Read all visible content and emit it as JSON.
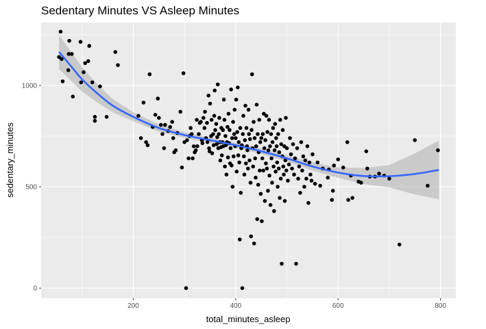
{
  "chart_data": {
    "type": "scatter",
    "title": "Sedentary Minutes VS Asleep Minutes",
    "xlabel": "total_minutes_asleep",
    "ylabel": "sedentary_minutes",
    "xlim": [
      20,
      830
    ],
    "ylim": [
      -50,
      1310
    ],
    "x_ticks": [
      200,
      400,
      600,
      800
    ],
    "y_ticks": [
      0,
      500,
      1000
    ],
    "grid": true,
    "legend": "none",
    "colors": {
      "panel": "#ebebeb",
      "grid": "#ffffff",
      "points": "#000000",
      "smooth_line": "#3366ff",
      "ribbon": "#999999"
    },
    "points": [
      [
        58,
        1265
      ],
      [
        55,
        1140
      ],
      [
        60,
        1130
      ],
      [
        62,
        1020
      ],
      [
        75,
        1220
      ],
      [
        73,
        1075
      ],
      [
        74,
        1155
      ],
      [
        80,
        1155
      ],
      [
        82,
        945
      ],
      [
        97,
        1215
      ],
      [
        103,
        1065
      ],
      [
        106,
        1110
      ],
      [
        112,
        1120
      ],
      [
        114,
        1195
      ],
      [
        98,
        1015
      ],
      [
        120,
        1015
      ],
      [
        125,
        825
      ],
      [
        125,
        845
      ],
      [
        135,
        995
      ],
      [
        148,
        845
      ],
      [
        165,
        1165
      ],
      [
        170,
        1100
      ],
      [
        210,
        850
      ],
      [
        215,
        740
      ],
      [
        220,
        915
      ],
      [
        225,
        720
      ],
      [
        228,
        705
      ],
      [
        232,
        1055
      ],
      [
        238,
        795
      ],
      [
        243,
        855
      ],
      [
        248,
        935
      ],
      [
        250,
        840
      ],
      [
        254,
        805
      ],
      [
        257,
        760
      ],
      [
        260,
        690
      ],
      [
        262,
        805
      ],
      [
        268,
        775
      ],
      [
        272,
        795
      ],
      [
        276,
        820
      ],
      [
        278,
        740
      ],
      [
        280,
        670
      ],
      [
        283,
        680
      ],
      [
        286,
        765
      ],
      [
        292,
        870
      ],
      [
        295,
        595
      ],
      [
        298,
        1060
      ],
      [
        300,
        720
      ],
      [
        303,
        0
      ],
      [
        305,
        730
      ],
      [
        308,
        640
      ],
      [
        310,
        750
      ],
      [
        312,
        790
      ],
      [
        314,
        760
      ],
      [
        316,
        640
      ],
      [
        318,
        700
      ],
      [
        320,
        670
      ],
      [
        322,
        680
      ],
      [
        324,
        830
      ],
      [
        325,
        700
      ],
      [
        328,
        760
      ],
      [
        330,
        815
      ],
      [
        332,
        820
      ],
      [
        334,
        730
      ],
      [
        335,
        715
      ],
      [
        337,
        840
      ],
      [
        339,
        790
      ],
      [
        340,
        870
      ],
      [
        342,
        740
      ],
      [
        344,
        815
      ],
      [
        345,
        720
      ],
      [
        347,
        950
      ],
      [
        348,
        690
      ],
      [
        349,
        675
      ],
      [
        350,
        910
      ],
      [
        352,
        750
      ],
      [
        353,
        830
      ],
      [
        354,
        665
      ],
      [
        356,
        760
      ],
      [
        357,
        705
      ],
      [
        358,
        850
      ],
      [
        359,
        975
      ],
      [
        360,
        780
      ],
      [
        362,
        810
      ],
      [
        363,
        710
      ],
      [
        364,
        745
      ],
      [
        365,
        1005
      ],
      [
        366,
        690
      ],
      [
        367,
        760
      ],
      [
        368,
        840
      ],
      [
        369,
        720
      ],
      [
        370,
        630
      ],
      [
        371,
        695
      ],
      [
        372,
        790
      ],
      [
        373,
        655
      ],
      [
        374,
        720
      ],
      [
        375,
        780
      ],
      [
        376,
        700
      ],
      [
        377,
        930
      ],
      [
        378,
        830
      ],
      [
        379,
        600
      ],
      [
        380,
        750
      ],
      [
        381,
        705
      ],
      [
        382,
        560
      ],
      [
        383,
        720
      ],
      [
        384,
        795
      ],
      [
        385,
        645
      ],
      [
        386,
        860
      ],
      [
        387,
        715
      ],
      [
        388,
        780
      ],
      [
        389,
        615
      ],
      [
        390,
        690
      ],
      [
        391,
        980
      ],
      [
        392,
        605
      ],
      [
        393,
        740
      ],
      [
        394,
        500
      ],
      [
        395,
        820
      ],
      [
        396,
        650
      ],
      [
        397,
        760
      ],
      [
        398,
        880
      ],
      [
        399,
        700
      ],
      [
        400,
        740
      ],
      [
        401,
        930
      ],
      [
        402,
        575
      ],
      [
        403,
        770
      ],
      [
        404,
        990
      ],
      [
        405,
        655
      ],
      [
        406,
        720
      ],
      [
        407,
        620
      ],
      [
        408,
        240
      ],
      [
        409,
        790
      ],
      [
        410,
        470
      ],
      [
        411,
        690
      ],
      [
        412,
        705
      ],
      [
        413,
        0
      ],
      [
        414,
        760
      ],
      [
        415,
        850
      ],
      [
        416,
        650
      ],
      [
        417,
        560
      ],
      [
        418,
        730
      ],
      [
        419,
        900
      ],
      [
        420,
        615
      ],
      [
        421,
        790
      ],
      [
        422,
        700
      ],
      [
        423,
        680
      ],
      [
        424,
        590
      ],
      [
        425,
        880
      ],
      [
        426,
        760
      ],
      [
        427,
        630
      ],
      [
        428,
        735
      ],
      [
        429,
        520
      ],
      [
        430,
        255
      ],
      [
        431,
        780
      ],
      [
        432,
        1055
      ],
      [
        433,
        690
      ],
      [
        434,
        600
      ],
      [
        435,
        820
      ],
      [
        436,
        220
      ],
      [
        437,
        740
      ],
      [
        438,
        640
      ],
      [
        439,
        545
      ],
      [
        440,
        700
      ],
      [
        441,
        905
      ],
      [
        442,
        340
      ],
      [
        443,
        760
      ],
      [
        444,
        510
      ],
      [
        445,
        670
      ],
      [
        446,
        830
      ],
      [
        447,
        580
      ],
      [
        448,
        720
      ],
      [
        449,
        465
      ],
      [
        450,
        740
      ],
      [
        451,
        330
      ],
      [
        452,
        640
      ],
      [
        453,
        760
      ],
      [
        454,
        580
      ],
      [
        455,
        860
      ],
      [
        456,
        690
      ],
      [
        457,
        430
      ],
      [
        458,
        730
      ],
      [
        459,
        615
      ],
      [
        460,
        850
      ],
      [
        461,
        590
      ],
      [
        462,
        770
      ],
      [
        463,
        480
      ],
      [
        464,
        680
      ],
      [
        465,
        830
      ],
      [
        466,
        555
      ],
      [
        467,
        700
      ],
      [
        468,
        410
      ],
      [
        469,
        760
      ],
      [
        470,
        640
      ],
      [
        471,
        520
      ],
      [
        472,
        720
      ],
      [
        473,
        790
      ],
      [
        474,
        600
      ],
      [
        475,
        380
      ],
      [
        476,
        680
      ],
      [
        477,
        810
      ],
      [
        478,
        575
      ],
      [
        479,
        740
      ],
      [
        480,
        700
      ],
      [
        481,
        620
      ],
      [
        482,
        500
      ],
      [
        483,
        760
      ],
      [
        484,
        590
      ],
      [
        485,
        670
      ],
      [
        486,
        445
      ],
      [
        487,
        830
      ],
      [
        488,
        540
      ],
      [
        489,
        710
      ],
      [
        490,
        120
      ],
      [
        491,
        650
      ],
      [
        492,
        780
      ],
      [
        493,
        600
      ],
      [
        494,
        560
      ],
      [
        495,
        700
      ],
      [
        496,
        430
      ],
      [
        497,
        630
      ],
      [
        498,
        840
      ],
      [
        499,
        580
      ],
      [
        500,
        690
      ],
      [
        502,
        530
      ],
      [
        504,
        610
      ],
      [
        506,
        740
      ],
      [
        508,
        660
      ],
      [
        510,
        590
      ],
      [
        512,
        710
      ],
      [
        514,
        560
      ],
      [
        516,
        640
      ],
      [
        518,
        120
      ],
      [
        520,
        690
      ],
      [
        522,
        540
      ],
      [
        524,
        600
      ],
      [
        526,
        470
      ],
      [
        528,
        720
      ],
      [
        530,
        580
      ],
      [
        532,
        650
      ],
      [
        534,
        500
      ],
      [
        536,
        630
      ],
      [
        538,
        540
      ],
      [
        540,
        700
      ],
      [
        542,
        420
      ],
      [
        544,
        620
      ],
      [
        546,
        560
      ],
      [
        548,
        530
      ],
      [
        550,
        660
      ],
      [
        555,
        515
      ],
      [
        560,
        620
      ],
      [
        565,
        505
      ],
      [
        570,
        590
      ],
      [
        580,
        545
      ],
      [
        582,
        585
      ],
      [
        588,
        435
      ],
      [
        590,
        480
      ],
      [
        592,
        605
      ],
      [
        600,
        635
      ],
      [
        610,
        595
      ],
      [
        618,
        720
      ],
      [
        620,
        435
      ],
      [
        625,
        555
      ],
      [
        628,
        445
      ],
      [
        640,
        525
      ],
      [
        645,
        520
      ],
      [
        655,
        675
      ],
      [
        657,
        590
      ],
      [
        662,
        550
      ],
      [
        672,
        550
      ],
      [
        680,
        565
      ],
      [
        690,
        555
      ],
      [
        700,
        540
      ],
      [
        720,
        215
      ],
      [
        750,
        730
      ],
      [
        775,
        505
      ],
      [
        795,
        680
      ]
    ],
    "smooth": [
      [
        55,
        1165
      ],
      [
        80,
        1090
      ],
      [
        100,
        1030
      ],
      [
        130,
        960
      ],
      [
        160,
        900
      ],
      [
        200,
        845
      ],
      [
        250,
        790
      ],
      [
        300,
        755
      ],
      [
        350,
        730
      ],
      [
        400,
        705
      ],
      [
        450,
        675
      ],
      [
        500,
        640
      ],
      [
        550,
        600
      ],
      [
        600,
        570
      ],
      [
        650,
        553
      ],
      [
        700,
        552
      ],
      [
        750,
        563
      ],
      [
        797,
        583
      ]
    ],
    "ribbon_half_width": [
      [
        55,
        85
      ],
      [
        100,
        60
      ],
      [
        150,
        35
      ],
      [
        200,
        22
      ],
      [
        300,
        14
      ],
      [
        400,
        12
      ],
      [
        500,
        15
      ],
      [
        600,
        25
      ],
      [
        700,
        55
      ],
      [
        797,
        145
      ]
    ]
  }
}
